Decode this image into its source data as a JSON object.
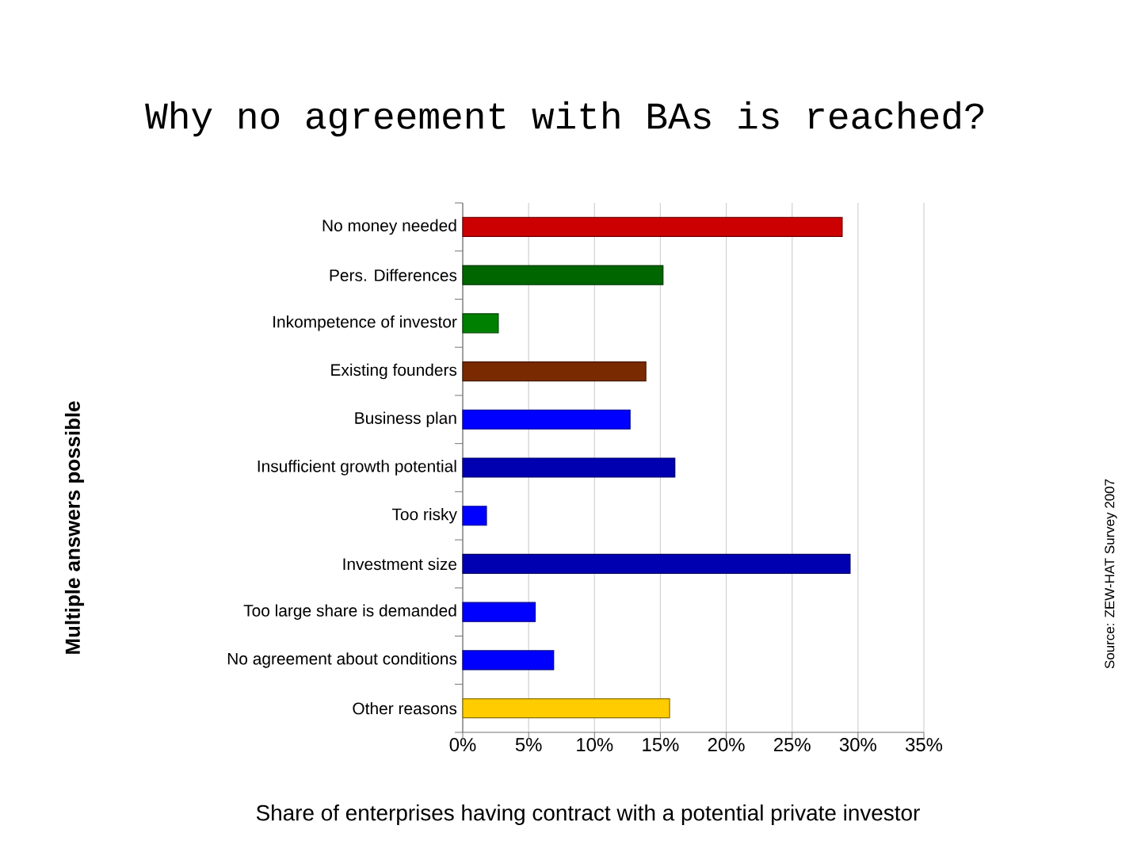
{
  "chart_data": {
    "type": "bar",
    "orientation": "horizontal",
    "title": "Why no agreement with BAs is reached?",
    "xlabel": "Share of enterprises having contract with a potential private investor",
    "categories": [
      "No money needed",
      "Pers. Differences",
      "Inkompetence of investor",
      "Existing founders",
      "Business plan",
      "Insufficient growth potential",
      "Too risky",
      "Investment size",
      "Too large share is demanded",
      "No agreement about conditions",
      "Other reasons"
    ],
    "values": [
      28.8,
      15.2,
      2.7,
      13.9,
      12.7,
      16.1,
      1.8,
      29.4,
      5.5,
      6.9,
      15.7
    ],
    "colors": [
      "#cc0000",
      "#006600",
      "#008000",
      "#7a2a00",
      "#0000ff",
      "#0000b0",
      "#0000ff",
      "#0000b0",
      "#0000ff",
      "#0000ff",
      "#ffcc00"
    ],
    "xlim": [
      0,
      35
    ],
    "xticks": [
      {
        "value": 0,
        "label": "0%"
      },
      {
        "value": 5,
        "label": "5%"
      },
      {
        "value": 10,
        "label": "10%"
      },
      {
        "value": 15,
        "label": "15%"
      },
      {
        "value": 20,
        "label": "20%"
      },
      {
        "value": 25,
        "label": "25%"
      },
      {
        "value": 30,
        "label": "30%"
      },
      {
        "value": 35,
        "label": "35%"
      }
    ],
    "grid": "x",
    "annotations": [
      "Multiple answers possible",
      "Source: ZEW-HAT Survey 2007"
    ]
  }
}
